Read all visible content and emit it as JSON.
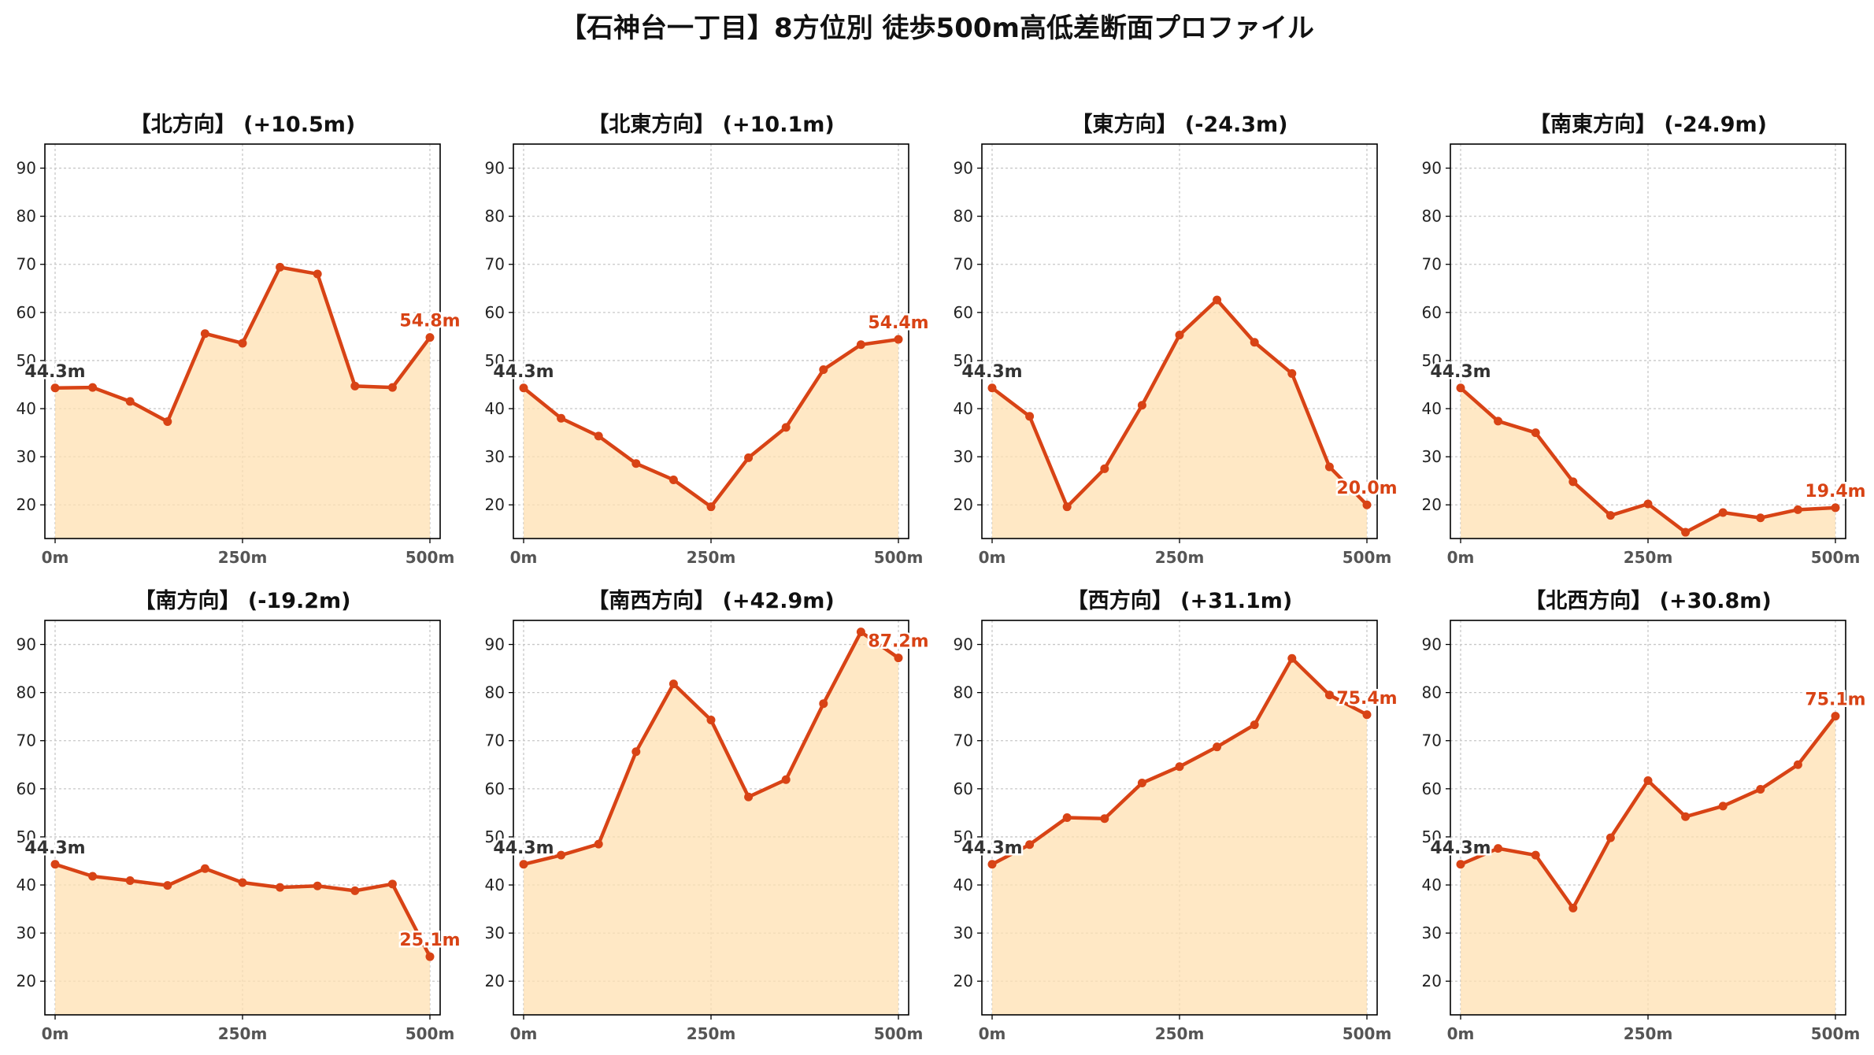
{
  "title": "【石神台一丁目】8方位別 徒歩500m高低差断面プロファイル",
  "colors": {
    "line": "#d84315",
    "fill": "#ffe0b2",
    "start_label": "#333333",
    "end_label": "#d84315",
    "grid": "#c8c8c8"
  },
  "chart_data": [
    {
      "type": "area",
      "title": "【北方向】 (+10.5m)",
      "x": [
        0,
        50,
        100,
        150,
        200,
        250,
        300,
        350,
        400,
        450,
        500
      ],
      "values": [
        44.3,
        44.4,
        41.5,
        37.3,
        55.6,
        53.6,
        69.4,
        68.0,
        44.7,
        44.4,
        54.8
      ],
      "start_label": "44.3m",
      "end_label": "54.8m",
      "xticks": [
        "0m",
        "250m",
        "500m"
      ],
      "yticks": [
        "20",
        "30",
        "40",
        "50",
        "60",
        "70",
        "80",
        "90"
      ],
      "xlim": [
        0,
        500
      ],
      "ylim": [
        13,
        95
      ],
      "grid": true
    },
    {
      "type": "area",
      "title": "【北東方向】 (+10.1m)",
      "x": [
        0,
        50,
        100,
        150,
        200,
        250,
        300,
        350,
        400,
        450,
        500
      ],
      "values": [
        44.3,
        38.0,
        34.3,
        28.6,
        25.2,
        19.6,
        29.8,
        36.1,
        48.1,
        53.3,
        54.4
      ],
      "start_label": "44.3m",
      "end_label": "54.4m",
      "xticks": [
        "0m",
        "250m",
        "500m"
      ],
      "yticks": [
        "20",
        "30",
        "40",
        "50",
        "60",
        "70",
        "80",
        "90"
      ],
      "xlim": [
        0,
        500
      ],
      "ylim": [
        13,
        95
      ],
      "grid": true
    },
    {
      "type": "area",
      "title": "【東方向】 (-24.3m)",
      "x": [
        0,
        50,
        100,
        150,
        200,
        250,
        300,
        350,
        400,
        450,
        500
      ],
      "values": [
        44.3,
        38.4,
        19.6,
        27.5,
        40.7,
        55.3,
        62.6,
        53.8,
        47.3,
        27.9,
        20.0
      ],
      "start_label": "44.3m",
      "end_label": "20.0m",
      "xticks": [
        "0m",
        "250m",
        "500m"
      ],
      "yticks": [
        "20",
        "30",
        "40",
        "50",
        "60",
        "70",
        "80",
        "90"
      ],
      "xlim": [
        0,
        500
      ],
      "ylim": [
        13,
        95
      ],
      "grid": true
    },
    {
      "type": "area",
      "title": "【南東方向】 (-24.9m)",
      "x": [
        0,
        50,
        100,
        150,
        200,
        250,
        300,
        350,
        400,
        450,
        500
      ],
      "values": [
        44.3,
        37.4,
        35.0,
        24.8,
        17.8,
        20.2,
        14.3,
        18.4,
        17.3,
        19.0,
        19.4
      ],
      "start_label": "44.3m",
      "end_label": "19.4m",
      "xticks": [
        "0m",
        "250m",
        "500m"
      ],
      "yticks": [
        "20",
        "30",
        "40",
        "50",
        "60",
        "70",
        "80",
        "90"
      ],
      "xlim": [
        0,
        500
      ],
      "ylim": [
        13,
        95
      ],
      "grid": true
    },
    {
      "type": "area",
      "title": "【南方向】 (-19.2m)",
      "x": [
        0,
        50,
        100,
        150,
        200,
        250,
        300,
        350,
        400,
        450,
        500
      ],
      "values": [
        44.3,
        41.8,
        40.9,
        39.9,
        43.4,
        40.5,
        39.5,
        39.8,
        38.8,
        40.2,
        25.1
      ],
      "start_label": "44.3m",
      "end_label": "25.1m",
      "xticks": [
        "0m",
        "250m",
        "500m"
      ],
      "yticks": [
        "20",
        "30",
        "40",
        "50",
        "60",
        "70",
        "80",
        "90"
      ],
      "xlim": [
        0,
        500
      ],
      "ylim": [
        13,
        95
      ],
      "grid": true
    },
    {
      "type": "area",
      "title": "【南西方向】 (+42.9m)",
      "x": [
        0,
        50,
        100,
        150,
        200,
        250,
        300,
        350,
        400,
        450,
        500
      ],
      "values": [
        44.3,
        46.2,
        48.5,
        67.7,
        81.8,
        74.3,
        58.3,
        61.9,
        77.7,
        92.6,
        87.2
      ],
      "start_label": "44.3m",
      "end_label": "87.2m",
      "xticks": [
        "0m",
        "250m",
        "500m"
      ],
      "yticks": [
        "20",
        "30",
        "40",
        "50",
        "60",
        "70",
        "80",
        "90"
      ],
      "xlim": [
        0,
        500
      ],
      "ylim": [
        13,
        95
      ],
      "grid": true
    },
    {
      "type": "area",
      "title": "【西方向】 (+31.1m)",
      "x": [
        0,
        50,
        100,
        150,
        200,
        250,
        300,
        350,
        400,
        450,
        500
      ],
      "values": [
        44.3,
        48.4,
        54.0,
        53.8,
        61.2,
        64.6,
        68.7,
        73.3,
        87.1,
        79.5,
        75.4
      ],
      "start_label": "44.3m",
      "end_label": "75.4m",
      "xticks": [
        "0m",
        "250m",
        "500m"
      ],
      "yticks": [
        "20",
        "30",
        "40",
        "50",
        "60",
        "70",
        "80",
        "90"
      ],
      "xlim": [
        0,
        500
      ],
      "ylim": [
        13,
        95
      ],
      "grid": true
    },
    {
      "type": "area",
      "title": "【北西方向】 (+30.8m)",
      "x": [
        0,
        50,
        100,
        150,
        200,
        250,
        300,
        350,
        400,
        450,
        500
      ],
      "values": [
        44.3,
        47.6,
        46.2,
        35.2,
        49.8,
        61.7,
        54.2,
        56.4,
        59.9,
        65.0,
        75.1
      ],
      "start_label": "44.3m",
      "end_label": "75.1m",
      "xticks": [
        "0m",
        "250m",
        "500m"
      ],
      "yticks": [
        "20",
        "30",
        "40",
        "50",
        "60",
        "70",
        "80",
        "90"
      ],
      "xlim": [
        0,
        500
      ],
      "ylim": [
        13,
        95
      ],
      "grid": true
    }
  ]
}
